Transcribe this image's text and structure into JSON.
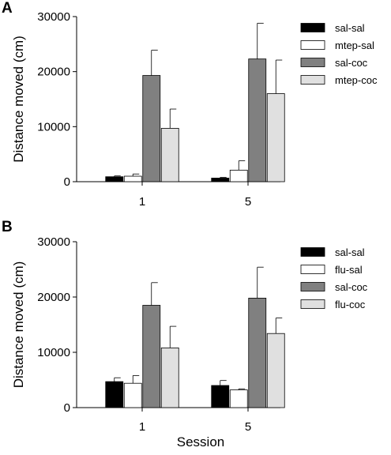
{
  "figure": {
    "xlabel": "Session"
  },
  "chart_data": [
    {
      "type": "bar",
      "panel_label": "A",
      "categories": [
        "1",
        "5"
      ],
      "ylabel": "Distance moved (cm)",
      "ylim": [
        0,
        30000
      ],
      "yticks": [
        "0",
        "10000",
        "20000",
        "30000"
      ],
      "series": [
        {
          "name": "sal-sal",
          "color": "#000000",
          "values": [
            900,
            650
          ],
          "errors": [
            150,
            150
          ]
        },
        {
          "name": "mtep-sal",
          "color": "#ffffff",
          "values": [
            1000,
            2100
          ],
          "errors": [
            400,
            1700
          ]
        },
        {
          "name": "sal-coc",
          "color": "#808080",
          "values": [
            19300,
            22300
          ],
          "errors": [
            4600,
            6500
          ]
        },
        {
          "name": "mtep-coc",
          "color": "#e0e0e0",
          "values": [
            9700,
            16000
          ],
          "errors": [
            3500,
            6100
          ]
        }
      ],
      "legend_position": "top-right"
    },
    {
      "type": "bar",
      "panel_label": "B",
      "categories": [
        "1",
        "5"
      ],
      "ylabel": "Distance moved (cm)",
      "ylim": [
        0,
        30000
      ],
      "yticks": [
        "0",
        "10000",
        "20000",
        "30000"
      ],
      "series": [
        {
          "name": "sal-sal",
          "color": "#000000",
          "values": [
            4700,
            4000
          ],
          "errors": [
            700,
            900
          ]
        },
        {
          "name": "flu-sal",
          "color": "#ffffff",
          "values": [
            4400,
            3200
          ],
          "errors": [
            1400,
            200
          ]
        },
        {
          "name": "sal-coc",
          "color": "#808080",
          "values": [
            18500,
            19800
          ],
          "errors": [
            4100,
            5600
          ]
        },
        {
          "name": "flu-coc",
          "color": "#e0e0e0",
          "values": [
            10800,
            13400
          ],
          "errors": [
            3900,
            2800
          ]
        }
      ],
      "legend_position": "top-right"
    }
  ]
}
